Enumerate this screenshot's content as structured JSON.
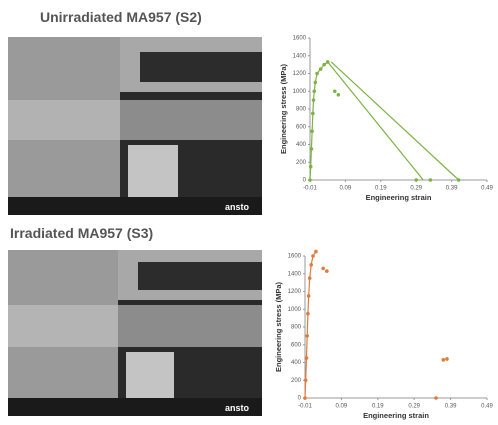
{
  "chart_data": [
    {
      "type": "line",
      "title": "Unirradiated MA957 (S2)",
      "x_label": "Engineering strain",
      "y_label": "Engineering stress (MPa)",
      "xlim": [
        -0.01,
        0.49
      ],
      "ylim": [
        0,
        1600
      ],
      "xticks": [
        -0.01,
        0.09,
        0.19,
        0.29,
        0.39,
        0.49
      ],
      "yticks": [
        0,
        200,
        400,
        600,
        800,
        1000,
        1200,
        1400,
        1600
      ],
      "series": [
        {
          "color": "#7cb342",
          "line": true,
          "markers": true,
          "x": [
            -0.01,
            -0.008,
            -0.006,
            -0.004,
            -0.002,
            0,
            0.002,
            0.005,
            0.01,
            0.02,
            0.03,
            0.04
          ],
          "values": [
            0,
            150,
            350,
            550,
            750,
            900,
            1000,
            1100,
            1200,
            1250,
            1300,
            1330
          ]
        },
        {
          "color": "#7cb342",
          "line": true,
          "markers": false,
          "x": [
            0.04,
            0.31
          ],
          "values": [
            1330,
            0
          ]
        },
        {
          "color": "#7cb342",
          "line": true,
          "markers": false,
          "x": [
            0.05,
            0.41
          ],
          "values": [
            1330,
            0
          ]
        },
        {
          "color": "#7cb342",
          "line": false,
          "markers": true,
          "x": [
            0.06,
            0.07,
            0.29,
            0.33,
            0.41
          ],
          "values": [
            1000,
            960,
            0,
            0,
            0
          ]
        }
      ]
    },
    {
      "type": "line",
      "title": "Irradiated MA957 (S3)",
      "x_label": "Engineering strain",
      "y_label": "Engineering stress (MPa)",
      "xlim": [
        -0.01,
        0.49
      ],
      "ylim": [
        0,
        1600
      ],
      "xticks": [
        -0.01,
        0.09,
        0.19,
        0.29,
        0.39,
        0.49
      ],
      "yticks": [
        0,
        200,
        400,
        600,
        800,
        1000,
        1200,
        1400,
        1600
      ],
      "series": [
        {
          "color": "#e07b39",
          "line": true,
          "markers": true,
          "x": [
            -0.01,
            -0.008,
            -0.006,
            -0.004,
            -0.002,
            0,
            0.003,
            0.007,
            0.012,
            0.02
          ],
          "values": [
            0,
            200,
            450,
            700,
            950,
            1150,
            1350,
            1500,
            1600,
            1650
          ]
        },
        {
          "color": "#e07b39",
          "line": false,
          "markers": true,
          "x": [
            0.04,
            0.05,
            0.37,
            0.38,
            0.35
          ],
          "values": [
            1460,
            1430,
            430,
            440,
            0
          ]
        }
      ]
    }
  ],
  "images": [
    {
      "logo": "ansto"
    },
    {
      "logo": "ansto"
    }
  ]
}
